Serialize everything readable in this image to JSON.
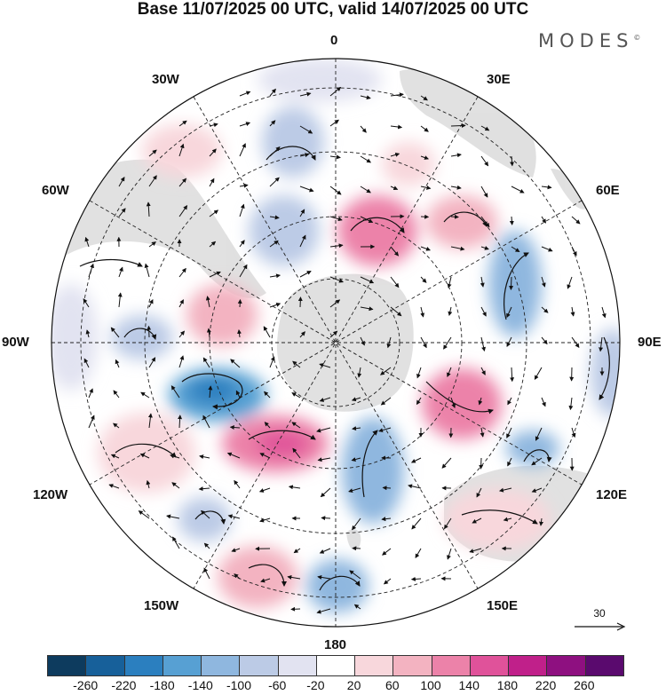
{
  "title": "Base 11/07/2025 00 UTC, valid 14/07/2025 00 UTC",
  "brand": "MODES",
  "brand_mark": "©",
  "longitude_labels": {
    "lon0": "0",
    "lon30e": "30E",
    "lon60e": "60E",
    "lon90e": "90E",
    "lon120e": "120E",
    "lon150e": "150E",
    "lon180": "180",
    "lon150w": "150W",
    "lon120w": "120W",
    "lon90w": "90W",
    "lon60w": "60W",
    "lon30w": "30W"
  },
  "reference_vector": {
    "label": "30"
  },
  "colorbar": {
    "colors": [
      "#0d3b5e",
      "#17609a",
      "#2b7fbf",
      "#57a0d3",
      "#8fb7df",
      "#bccbe6",
      "#e2e3f1",
      "#ffffff",
      "#f8d7dc",
      "#f3b3c1",
      "#ec82a9",
      "#e0529a",
      "#c0208a",
      "#8e1080",
      "#5a0a6e"
    ],
    "ticks": [
      "-260",
      "-220",
      "-180",
      "-140",
      "-100",
      "-60",
      "-20",
      "20",
      "60",
      "100",
      "140",
      "180",
      "220",
      "260"
    ]
  }
}
